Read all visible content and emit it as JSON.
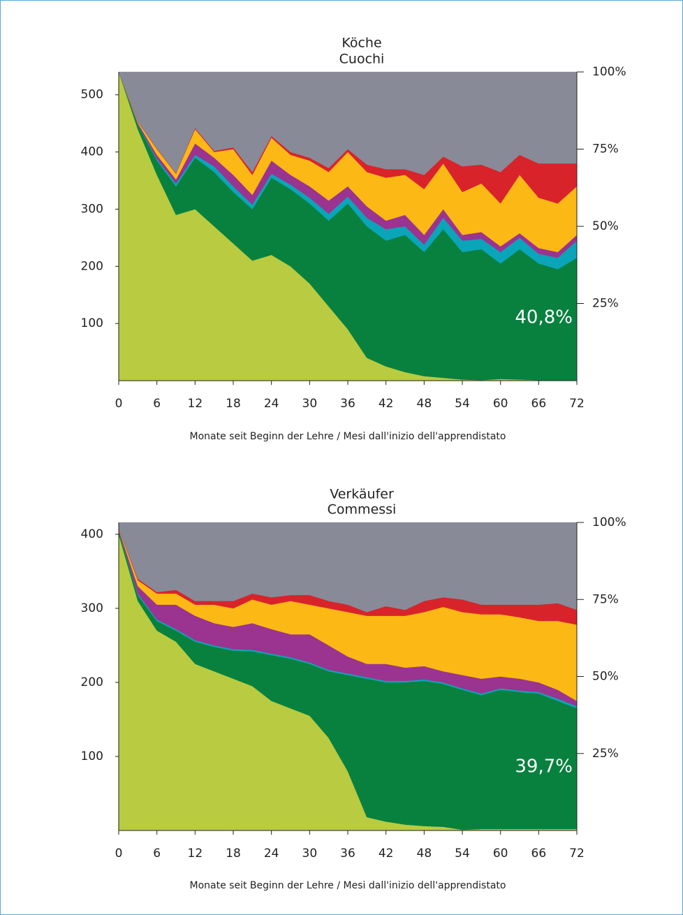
{
  "chart_data": [
    {
      "type": "area",
      "stacked": true,
      "title": "Köche",
      "subtitle": "Cuochi",
      "x_label": "Monate seit Beginn der Lehre / Mesi dall'inizio dell'apprendistato",
      "annotation": "40,8%",
      "x": [
        0,
        3,
        6,
        9,
        12,
        15,
        18,
        21,
        24,
        27,
        30,
        33,
        36,
        39,
        42,
        45,
        48,
        51,
        54,
        57,
        60,
        63,
        66,
        69,
        72
      ],
      "xlim": [
        0,
        72
      ],
      "xticks": [
        0,
        6,
        12,
        18,
        24,
        30,
        36,
        42,
        48,
        54,
        60,
        66,
        72
      ],
      "ylim": [
        0,
        540
      ],
      "yticks": [
        100,
        200,
        300,
        400,
        500
      ],
      "y2lim": [
        0,
        100
      ],
      "y2ticks": [
        {
          "value": 25,
          "label": "25%"
        },
        {
          "value": 50,
          "label": "50%"
        },
        {
          "value": 75,
          "label": "75%"
        },
        {
          "value": 100,
          "label": "100%"
        }
      ],
      "series": [
        {
          "color": "#b9cb40",
          "values": [
            540,
            440,
            360,
            290,
            300,
            270,
            240,
            210,
            220,
            200,
            170,
            130,
            90,
            40,
            25,
            15,
            8,
            5,
            2,
            1,
            3,
            2,
            1,
            0,
            0
          ]
        },
        {
          "color": "#08813e",
          "values": [
            0,
            8,
            25,
            50,
            90,
            95,
            90,
            90,
            135,
            135,
            140,
            150,
            220,
            230,
            220,
            240,
            217,
            260,
            223,
            229,
            202,
            228,
            204,
            195,
            215
          ]
        },
        {
          "color": "#0aa5b8",
          "values": [
            0,
            1,
            3,
            5,
            5,
            10,
            10,
            8,
            7,
            8,
            10,
            12,
            12,
            15,
            20,
            15,
            13,
            20,
            20,
            18,
            20,
            20,
            17,
            20,
            30
          ]
        },
        {
          "color": "#9b3390",
          "values": [
            0,
            2,
            7,
            7,
            20,
            15,
            20,
            17,
            23,
            17,
            20,
            23,
            18,
            20,
            15,
            20,
            17,
            15,
            10,
            12,
            10,
            8,
            10,
            10,
            10
          ]
        },
        {
          "color": "#fcb814",
          "values": [
            0,
            2,
            10,
            10,
            25,
            10,
            45,
            35,
            40,
            35,
            45,
            50,
            60,
            60,
            75,
            70,
            80,
            80,
            75,
            85,
            75,
            102,
            88,
            85,
            85
          ]
        },
        {
          "color": "#d9232a",
          "values": [
            0,
            1,
            1,
            1,
            2,
            2,
            3,
            5,
            3,
            5,
            5,
            7,
            5,
            13,
            15,
            10,
            25,
            12,
            45,
            33,
            55,
            35,
            60,
            70,
            40
          ]
        },
        {
          "color": "#888a98",
          "values": [
            0,
            86,
            134,
            177,
            98,
            138,
            132,
            175,
            112,
            140,
            150,
            168,
            135,
            162,
            170,
            170,
            180,
            148,
            165,
            162,
            175,
            145,
            160,
            160,
            160
          ]
        }
      ]
    },
    {
      "type": "area",
      "stacked": true,
      "title": "Verkäufer",
      "subtitle": "Commessi",
      "x_label": "Monate seit Beginn der Lehre / Mesi dall'inizio dell'apprendistato",
      "annotation": "39,7%",
      "x": [
        0,
        3,
        6,
        9,
        12,
        15,
        18,
        21,
        24,
        27,
        30,
        33,
        36,
        39,
        42,
        45,
        48,
        51,
        54,
        57,
        60,
        63,
        66,
        69,
        72
      ],
      "xlim": [
        0,
        72
      ],
      "xticks": [
        0,
        6,
        12,
        18,
        24,
        30,
        36,
        42,
        48,
        54,
        60,
        66,
        72
      ],
      "ylim": [
        0,
        416
      ],
      "yticks": [
        100,
        200,
        300,
        400
      ],
      "y2lim": [
        0,
        100
      ],
      "y2ticks": [
        {
          "value": 25,
          "label": "25%"
        },
        {
          "value": 50,
          "label": "50%"
        },
        {
          "value": 75,
          "label": "75%"
        },
        {
          "value": 100,
          "label": "100%"
        }
      ],
      "series": [
        {
          "color": "#b9cb40",
          "values": [
            400,
            310,
            270,
            255,
            225,
            215,
            205,
            195,
            175,
            165,
            155,
            125,
            80,
            18,
            12,
            8,
            6,
            5,
            1,
            2,
            2,
            2,
            2,
            2,
            2
          ]
        },
        {
          "color": "#08813e",
          "values": [
            5,
            8,
            13,
            15,
            30,
            33,
            38,
            47,
            62,
            67,
            70,
            90,
            130,
            187,
            188,
            192,
            196,
            193,
            189,
            181,
            188,
            185,
            183,
            173,
            163
          ]
        },
        {
          "color": "#0aa5b8",
          "values": [
            1,
            2,
            2,
            2,
            2,
            2,
            2,
            2,
            2,
            2,
            2,
            2,
            2,
            2,
            2,
            2,
            2,
            2,
            2,
            2,
            2,
            2,
            2,
            3,
            3
          ]
        },
        {
          "color": "#9b3390",
          "values": [
            1,
            10,
            20,
            33,
            33,
            30,
            30,
            36,
            33,
            31,
            38,
            33,
            23,
            18,
            23,
            18,
            18,
            15,
            18,
            20,
            16,
            16,
            13,
            12,
            7
          ]
        },
        {
          "color": "#fcb814",
          "values": [
            1,
            8,
            15,
            15,
            15,
            25,
            25,
            32,
            33,
            45,
            40,
            50,
            60,
            65,
            65,
            70,
            73,
            87,
            85,
            87,
            84,
            83,
            83,
            93,
            103
          ]
        },
        {
          "color": "#d9232a",
          "values": [
            1,
            2,
            2,
            5,
            5,
            5,
            10,
            8,
            10,
            8,
            13,
            10,
            10,
            5,
            13,
            8,
            15,
            13,
            17,
            13,
            13,
            17,
            22,
            24,
            20
          ]
        },
        {
          "color": "#888a98",
          "values": [
            7,
            76,
            94,
            91,
            106,
            106,
            106,
            96,
            101,
            98,
            98,
            106,
            111,
            121,
            113,
            118,
            106,
            101,
            104,
            111,
            111,
            111,
            111,
            109,
            118
          ]
        }
      ]
    }
  ]
}
